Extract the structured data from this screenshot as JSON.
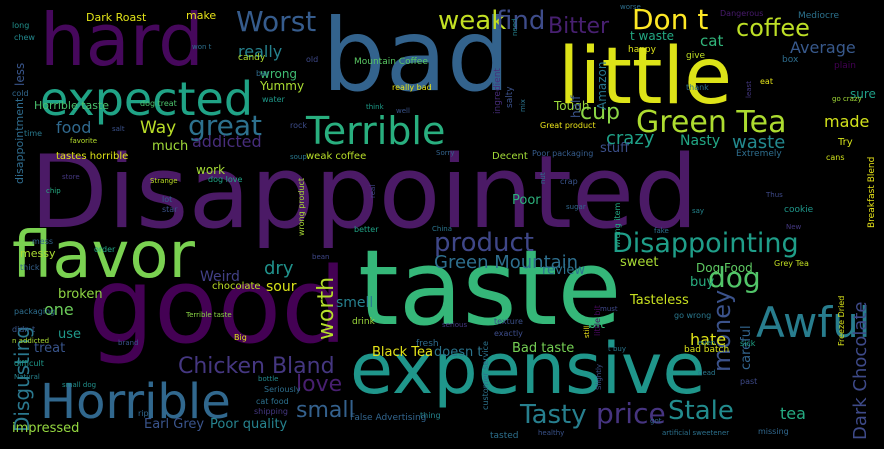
{
  "words": [
    {
      "text": "Disappointed",
      "color": "#4b1a66"
    },
    {
      "text": "taste",
      "color": "#35b779"
    },
    {
      "text": "bad",
      "color": "#33638d"
    },
    {
      "text": "good",
      "color": "#440154"
    },
    {
      "text": "expensive",
      "color": "#1f968b"
    },
    {
      "text": "little",
      "color": "#dde318"
    },
    {
      "text": "hard",
      "color": "#46085c"
    },
    {
      "text": "flavor",
      "color": "#7ad151"
    },
    {
      "text": "expected",
      "color": "#20a386"
    },
    {
      "text": "Terrible",
      "color": "#29af7f"
    },
    {
      "text": "Horrible",
      "color": "#31688e"
    },
    {
      "text": "Awful",
      "color": "#287d8e"
    },
    {
      "text": "Green Tea",
      "color": "#addc30"
    },
    {
      "text": "Disappointing",
      "color": "#1f9e89"
    },
    {
      "text": "product",
      "color": "#3f4788"
    },
    {
      "text": "Don t",
      "color": "#fde725"
    },
    {
      "text": "coffee",
      "color": "#bddf26"
    },
    {
      "text": "weak",
      "color": "#c2df23"
    },
    {
      "text": "find",
      "color": "#3e4c8a"
    },
    {
      "text": "Worst",
      "color": "#365c8d"
    },
    {
      "text": "great",
      "color": "#2d718e"
    },
    {
      "text": "Bitter",
      "color": "#482071"
    },
    {
      "text": "cup",
      "color": "#8bd646"
    },
    {
      "text": "money",
      "color": "#3b528b"
    },
    {
      "text": "dog",
      "color": "#52c569"
    },
    {
      "text": "price",
      "color": "#463480"
    },
    {
      "text": "Stale",
      "color": "#228b8d"
    },
    {
      "text": "Tasty",
      "color": "#277f8e"
    },
    {
      "text": "worth",
      "color": "#b5de2b"
    },
    {
      "text": "love",
      "color": "#481f70"
    },
    {
      "text": "small",
      "color": "#34618d"
    },
    {
      "text": "Chicken Bland",
      "color": "#453781"
    },
    {
      "text": "Green Mountain",
      "color": "#2e6f8e"
    },
    {
      "text": "Disgusting",
      "color": "#2a788e"
    },
    {
      "text": "Dark Chocolate",
      "color": "#3e4a89"
    },
    {
      "text": "Average",
      "color": "#38598c"
    },
    {
      "text": "made",
      "color": "#d2e21b"
    },
    {
      "text": "addicted",
      "color": "#472d7b"
    },
    {
      "text": "food",
      "color": "#30698e"
    },
    {
      "text": "really",
      "color": "#26828e"
    },
    {
      "text": "Way",
      "color": "#bade28"
    },
    {
      "text": "much",
      "color": "#a0da39"
    },
    {
      "text": "crazy",
      "color": "#1fa188"
    },
    {
      "text": "waste",
      "color": "#23898e"
    },
    {
      "text": "dry",
      "color": "#20928c"
    },
    {
      "text": "tea",
      "color": "#25ab82"
    },
    {
      "text": "hate",
      "color": "#dfe318"
    },
    {
      "text": "one",
      "color": "#6ccd5a"
    },
    {
      "text": "sour",
      "color": "#d8e219"
    },
    {
      "text": "cat",
      "color": "#31b57b"
    },
    {
      "text": "Nasty",
      "color": "#22a785"
    },
    {
      "text": "Weird",
      "color": "#424086"
    },
    {
      "text": "smell",
      "color": "#27808e"
    },
    {
      "text": "Dog Food",
      "color": "#5ec962"
    },
    {
      "text": "Black Tea",
      "color": "#e5e419"
    },
    {
      "text": "Bad taste",
      "color": "#75d054"
    },
    {
      "text": "Earl Grey",
      "color": "#3a548c"
    },
    {
      "text": "Poor quality",
      "color": "#26838f"
    },
    {
      "text": "impressed",
      "color": "#95d840"
    },
    {
      "text": "Tasteless",
      "color": "#c8e020"
    },
    {
      "text": "buy",
      "color": "#28ae80"
    },
    {
      "text": "broken",
      "color": "#8fd744"
    },
    {
      "text": "use",
      "color": "#1f998a"
    },
    {
      "text": "treat",
      "color": "#39558c"
    },
    {
      "text": "review",
      "color": "#2c738e"
    },
    {
      "text": "Poor",
      "color": "#2db27d"
    },
    {
      "text": "bit",
      "color": "#38b977"
    },
    {
      "text": "doesn t",
      "color": "#2b758e"
    },
    {
      "text": "sweet",
      "color": "#a8db34"
    },
    {
      "text": "careful",
      "color": "#32658e"
    },
    {
      "text": "stuff",
      "color": "#3c508b"
    },
    {
      "text": "Tough",
      "color": "#9bd93c"
    },
    {
      "text": "Yummy",
      "color": "#aadc32"
    },
    {
      "text": "wrong",
      "color": "#3fbc73"
    },
    {
      "text": "work",
      "color": "#a5db36"
    },
    {
      "text": "Dark Roast",
      "color": "#e1e418"
    },
    {
      "text": "make",
      "color": "#e7e419"
    },
    {
      "text": "Horrible taste",
      "color": "#4ac16d"
    },
    {
      "text": "Mountain Coffee",
      "color": "#5ac864"
    },
    {
      "text": "candy",
      "color": "#b0dd2f"
    },
    {
      "text": "dog treat",
      "color": "#4cc26c"
    },
    {
      "text": "really bad",
      "color": "#e7e419"
    },
    {
      "text": "weak coffee",
      "color": "#b8de29"
    },
    {
      "text": "tastes horrible",
      "color": "#dde318"
    },
    {
      "text": "Decent",
      "color": "#a2da37"
    },
    {
      "text": "Great product",
      "color": "#ece51b"
    },
    {
      "text": "Poor packaging",
      "color": "#365d8d"
    },
    {
      "text": "Extremely",
      "color": "#2e6e8e"
    },
    {
      "text": "disappointment",
      "color": "#2f6c8e"
    },
    {
      "text": "less",
      "color": "#39568c"
    },
    {
      "text": "Amazon",
      "color": "#2a778e"
    },
    {
      "text": "half",
      "color": "#3a538b"
    },
    {
      "text": "salty",
      "color": "#3b518b"
    },
    {
      "text": "ingredient",
      "color": "#472c7a"
    },
    {
      "text": "Dangerous",
      "color": "#481b6d"
    },
    {
      "text": "Mediocre",
      "color": "#2c728e"
    },
    {
      "text": "plain",
      "color": "#440154"
    },
    {
      "text": "box",
      "color": "#2e6d8e"
    },
    {
      "text": "sure",
      "color": "#1f9f88"
    },
    {
      "text": "happy",
      "color": "#dde318"
    },
    {
      "text": "give",
      "color": "#c0df25"
    },
    {
      "text": "eat",
      "color": "#e5e419"
    },
    {
      "text": "cold",
      "color": "#31688e"
    },
    {
      "text": "chew",
      "color": "#23898e"
    },
    {
      "text": "long",
      "color": "#21918c"
    },
    {
      "text": "won t",
      "color": "#2d708e"
    },
    {
      "text": "old",
      "color": "#3e4989"
    },
    {
      "text": "bar",
      "color": "#2f6b8e"
    },
    {
      "text": "water",
      "color": "#1f998a"
    },
    {
      "text": "rock",
      "color": "#3d4d8a"
    },
    {
      "text": "think",
      "color": "#1e9c89"
    },
    {
      "text": "well",
      "color": "#3a538b"
    },
    {
      "text": "mix",
      "color": "#2b748e"
    },
    {
      "text": "need",
      "color": "#26818e"
    },
    {
      "text": "worse",
      "color": "#2e6f8e"
    },
    {
      "text": "t waste",
      "color": "#23a983"
    },
    {
      "text": "Try",
      "color": "#d5e21a"
    },
    {
      "text": "cans",
      "color": "#d0e11c"
    },
    {
      "text": "thank",
      "color": "#2c728e"
    },
    {
      "text": "least",
      "color": "#453882"
    },
    {
      "text": "Breakfast Blend",
      "color": "#e7e419"
    },
    {
      "text": "go crazy",
      "color": "#a2da37"
    },
    {
      "text": "time",
      "color": "#29798e"
    },
    {
      "text": "salt",
      "color": "#3b528b"
    },
    {
      "text": "favorite",
      "color": "#b5de2b"
    },
    {
      "text": "soup",
      "color": "#2a788e"
    },
    {
      "text": "Sorry",
      "color": "#33638d"
    },
    {
      "text": "Strange",
      "color": "#bddf26"
    },
    {
      "text": "dog love",
      "color": "#20a486"
    },
    {
      "text": "store",
      "color": "#453781"
    },
    {
      "text": "chip",
      "color": "#25ac82"
    },
    {
      "text": "lot",
      "color": "#34608d"
    },
    {
      "text": "star",
      "color": "#3b528b"
    },
    {
      "text": "real",
      "color": "#404688"
    },
    {
      "text": "wrong product",
      "color": "#a8db34"
    },
    {
      "text": "better",
      "color": "#20a386"
    },
    {
      "text": "bean",
      "color": "#3f4889"
    },
    {
      "text": "nut",
      "color": "#2d708e"
    },
    {
      "text": "sugar",
      "color": "#31678e"
    },
    {
      "text": "crap",
      "color": "#3a548c"
    },
    {
      "text": "China",
      "color": "#2b758e"
    },
    {
      "text": "wrong item",
      "color": "#22a884"
    },
    {
      "text": "cookie",
      "color": "#1f988b"
    },
    {
      "text": "say",
      "color": "#24868e"
    },
    {
      "text": "fake",
      "color": "#2c718e"
    },
    {
      "text": "New",
      "color": "#453882"
    },
    {
      "text": "Grey Tea",
      "color": "#c2df23"
    },
    {
      "text": "Freeze Dried",
      "color": "#d8e219"
    },
    {
      "text": "Thus",
      "color": "#3e4a89"
    },
    {
      "text": "messy",
      "color": "#aadc32"
    },
    {
      "text": "mess",
      "color": "#32648e"
    },
    {
      "text": "thick",
      "color": "#34618d"
    },
    {
      "text": "packaging",
      "color": "#2e6e8e"
    },
    {
      "text": "order",
      "color": "#20a386"
    },
    {
      "text": "chocolate",
      "color": "#bddf26"
    },
    {
      "text": "Terrible taste",
      "color": "#8bd646"
    },
    {
      "text": "serious",
      "color": "#453882"
    },
    {
      "text": "texture",
      "color": "#3b518b"
    },
    {
      "text": "drink",
      "color": "#9bd93c"
    },
    {
      "text": "fresh",
      "color": "#2f6c8e"
    },
    {
      "text": "exactly",
      "color": "#3d4d8a"
    },
    {
      "text": "still",
      "color": "#ece51b"
    },
    {
      "text": "little bit",
      "color": "#46085c"
    },
    {
      "text": "must",
      "color": "#3f4889"
    },
    {
      "text": "even",
      "color": "#25838e"
    },
    {
      "text": "go wrong",
      "color": "#2a788e"
    },
    {
      "text": "didn t",
      "color": "#39568c"
    },
    {
      "text": "n addicted",
      "color": "#a8db34"
    },
    {
      "text": "brand",
      "color": "#3a538b"
    },
    {
      "text": "Big",
      "color": "#dde318"
    },
    {
      "text": "difficult",
      "color": "#1f998a"
    },
    {
      "text": "Natural",
      "color": "#26828e"
    },
    {
      "text": "small dog",
      "color": "#21918c"
    },
    {
      "text": "bottle",
      "color": "#23888e"
    },
    {
      "text": "Seriously",
      "color": "#2e6f8e"
    },
    {
      "text": "cat food",
      "color": "#2d718e"
    },
    {
      "text": "shipping",
      "color": "#453781"
    },
    {
      "text": "rip",
      "color": "#31678e"
    },
    {
      "text": "False Advertising",
      "color": "#32658e"
    },
    {
      "text": "thing",
      "color": "#25848e"
    },
    {
      "text": "customer service",
      "color": "#2c738e"
    },
    {
      "text": "Slightly",
      "color": "#3b528b"
    },
    {
      "text": "bad batch",
      "color": "#d8e219"
    },
    {
      "text": "t buy",
      "color": "#2a778e"
    },
    {
      "text": "sick",
      "color": "#20a386"
    },
    {
      "text": "past",
      "color": "#3e4a89"
    },
    {
      "text": "dead",
      "color": "#2a788e"
    },
    {
      "text": "got",
      "color": "#33638d"
    },
    {
      "text": "healthy",
      "color": "#3a538b"
    },
    {
      "text": "artificial sweetener",
      "color": "#2c718e"
    },
    {
      "text": "missing",
      "color": "#31688e"
    },
    {
      "text": "tasted",
      "color": "#2d708e"
    }
  ]
}
